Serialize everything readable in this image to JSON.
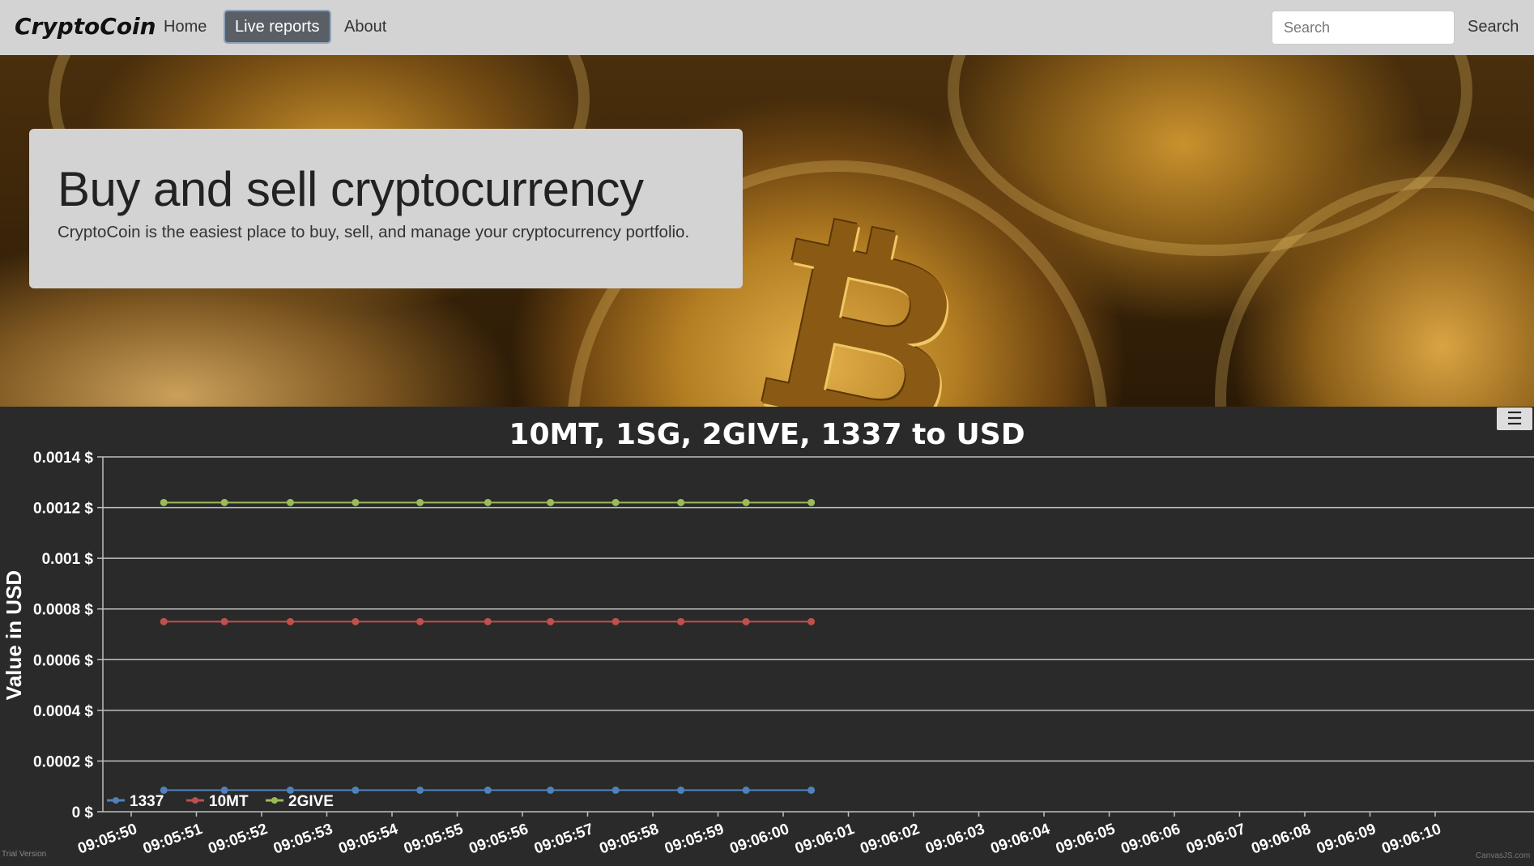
{
  "navbar": {
    "brand": "CryptoCoin",
    "links": [
      {
        "label": "Home",
        "active": false
      },
      {
        "label": "Live reports",
        "active": true
      },
      {
        "label": "About",
        "active": false
      }
    ],
    "search": {
      "placeholder": "Search",
      "value": "",
      "button_label": "Search"
    }
  },
  "hero": {
    "title": "Buy and sell cryptocurrency",
    "subtitle": "CryptoCoin is the easiest place to buy, sell, and manage your cryptocurrency portfolio."
  },
  "chart_footer": {
    "trial": "Trial Version",
    "credit": "CanvasJS.com"
  },
  "chart_data": {
    "type": "line",
    "title": "10MT, 1SG, 2GIVE, 1337 to USD",
    "ylabel": "Value in USD",
    "xlabel": "",
    "y_suffix": " $",
    "ylim": [
      0,
      0.0014
    ],
    "yticks": [
      0,
      0.0002,
      0.0004,
      0.0006,
      0.0008,
      0.001,
      0.0012,
      0.0014
    ],
    "ytick_labels": [
      "0 $",
      "0.0002 $",
      "0.0004 $",
      "0.0006 $",
      "0.0008 $",
      "0.001 $",
      "0.0012 $",
      "0.0014 $"
    ],
    "x_axis_labels": [
      "09:05:50",
      "09:05:51",
      "09:05:52",
      "09:05:53",
      "09:05:54",
      "09:05:55",
      "09:05:56",
      "09:05:57",
      "09:05:58",
      "09:05:59",
      "09:06:00",
      "09:06:01",
      "09:06:02",
      "09:06:03",
      "09:06:04",
      "09:06:05",
      "09:06:06",
      "09:06:07",
      "09:06:08",
      "09:06:09",
      "09:06:10"
    ],
    "x": [
      "09:05:50.5",
      "09:05:51.4",
      "09:05:52.4",
      "09:05:53.4",
      "09:05:54.4",
      "09:05:55.4",
      "09:05:56.4",
      "09:05:57.4",
      "09:05:58.4",
      "09:05:59.4",
      "09:06:00.4"
    ],
    "x_seconds_index": [
      0.5,
      1.43,
      2.44,
      3.44,
      4.43,
      5.47,
      6.43,
      7.43,
      8.43,
      9.43,
      10.43
    ],
    "series": [
      {
        "name": "1337",
        "color": "#4f81bc",
        "values": [
          8.5e-05,
          8.5e-05,
          8.5e-05,
          8.5e-05,
          8.5e-05,
          8.5e-05,
          8.5e-05,
          8.5e-05,
          8.5e-05,
          8.5e-05,
          8.5e-05
        ]
      },
      {
        "name": "10MT",
        "color": "#c0504e",
        "values": [
          0.00075,
          0.00075,
          0.00075,
          0.00075,
          0.00075,
          0.00075,
          0.00075,
          0.00075,
          0.00075,
          0.00075,
          0.00075
        ]
      },
      {
        "name": "2GIVE",
        "color": "#9bbb58",
        "values": [
          0.00122,
          0.00122,
          0.00122,
          0.00122,
          0.00122,
          0.00122,
          0.00122,
          0.00122,
          0.00122,
          0.00122,
          0.00122
        ]
      }
    ],
    "legend_position": "bottom-left",
    "grid": true,
    "theme": "dark"
  }
}
